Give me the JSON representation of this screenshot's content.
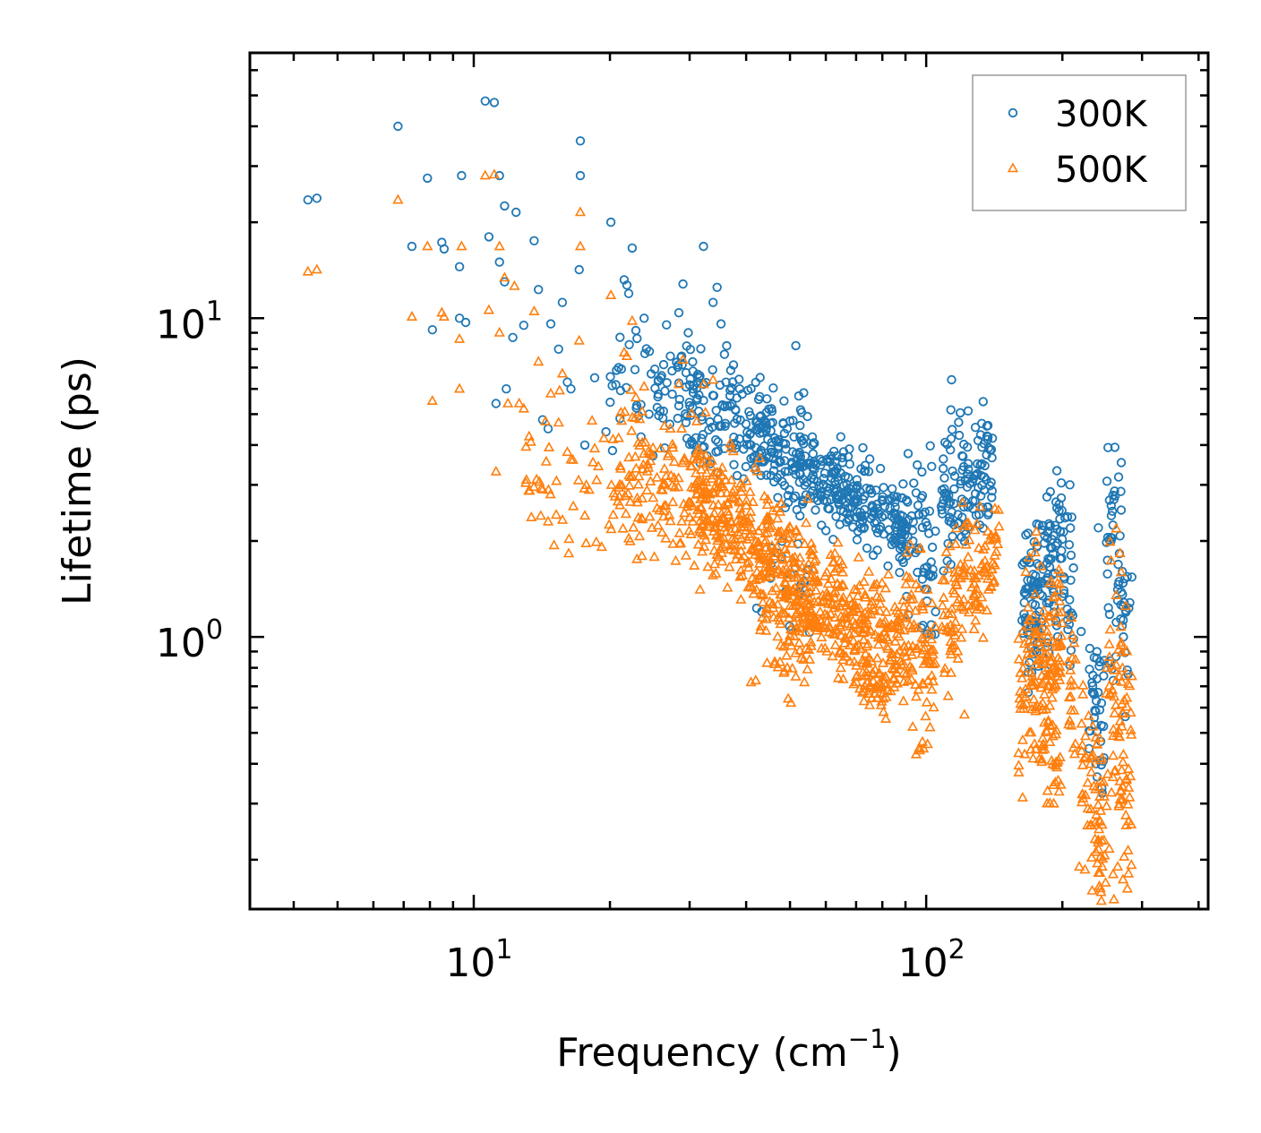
{
  "chart_data": {
    "type": "scatter",
    "title": "",
    "xlabel": "Frequency (cm",
    "xlabel_sup": "−1",
    "xlabel_end": ")",
    "ylabel": "Lifetime (ps)",
    "xscale": "log",
    "yscale": "log",
    "xlim": [
      3.2,
      420
    ],
    "ylim": [
      0.14,
      68
    ],
    "legend_position": "top-right",
    "x_ticks": [
      {
        "value": 10,
        "base": "10",
        "exp": "1"
      },
      {
        "value": 100,
        "base": "10",
        "exp": "2"
      }
    ],
    "y_ticks": [
      {
        "value": 1,
        "base": "10",
        "exp": "0"
      },
      {
        "value": 10,
        "base": "10",
        "exp": "1"
      }
    ],
    "series": [
      {
        "name": "300K",
        "color": "#1f77b4",
        "marker": "circle",
        "points": [
          [
            4.3,
            23.5
          ],
          [
            4.5,
            23.8
          ],
          [
            6.8,
            40
          ],
          [
            7.3,
            16.8
          ],
          [
            7.9,
            27.5
          ],
          [
            8.1,
            9.2
          ],
          [
            8.5,
            17.3
          ],
          [
            8.6,
            16.5
          ],
          [
            9.3,
            14.5
          ],
          [
            9.3,
            10.0
          ],
          [
            9.4,
            28.0
          ],
          [
            9.6,
            9.7
          ],
          [
            10.6,
            48
          ],
          [
            11.1,
            47.5
          ],
          [
            10.8,
            18.0
          ],
          [
            11.2,
            5.4
          ],
          [
            11.4,
            28.0
          ],
          [
            11.4,
            15.0
          ],
          [
            11.7,
            22.5
          ],
          [
            11.7,
            13.0
          ],
          [
            11.8,
            6.0
          ],
          [
            12.4,
            21.5
          ],
          [
            12.2,
            8.7
          ],
          [
            12.9,
            9.5
          ],
          [
            13.6,
            17.5
          ],
          [
            13.9,
            12.3
          ],
          [
            14.2,
            4.8
          ],
          [
            14.6,
            4.5
          ],
          [
            14.8,
            9.6
          ],
          [
            15.4,
            8.0
          ],
          [
            15.7,
            11.2
          ],
          [
            16.1,
            6.3
          ],
          [
            16.4,
            6.0
          ],
          [
            17.2,
            36
          ],
          [
            17.2,
            28
          ],
          [
            17.1,
            14.2
          ],
          [
            17.6,
            4.0
          ],
          [
            18.5,
            6.5
          ],
          [
            19.6,
            4.4
          ],
          [
            20.1,
            20.0
          ],
          [
            20.9,
            7.0
          ],
          [
            21.5,
            13.2
          ],
          [
            21.8,
            12.7
          ],
          [
            22.4,
            16.6
          ],
          [
            23.8,
            10.0
          ],
          [
            24.4,
            5.0
          ],
          [
            24.9,
            3.7
          ],
          [
            25.9,
            6.5
          ],
          [
            27.2,
            7.6
          ],
          [
            28.4,
            10.4
          ],
          [
            28.8,
            7.6
          ],
          [
            29.0,
            12.8
          ],
          [
            29.8,
            9.0
          ],
          [
            31.5,
            6.5
          ],
          [
            32.2,
            16.8
          ],
          [
            33.8,
            11.2
          ],
          [
            34.5,
            12.5
          ],
          [
            35.2,
            9.6
          ],
          [
            36.1,
            6.3
          ],
          [
            38.7,
            6.0
          ],
          [
            42.2,
            1.23
          ],
          [
            43.3,
            1.2
          ],
          [
            45.5,
            5.2
          ],
          [
            48.5,
            5.5
          ],
          [
            51.5,
            8.2
          ],
          [
            52.3,
            5.7
          ],
          [
            63.5,
            3.7
          ],
          [
            120.1,
            3.7
          ],
          [
            140.1,
            4.2
          ],
          [
            220.1,
            1.04
          ],
          [
            240.2,
            2.2
          ],
          [
            260.0,
            2.7
          ]
        ]
      },
      {
        "name": "500K",
        "color": "#ff7f0e",
        "marker": "triangle",
        "points": [
          [
            4.3,
            14.0
          ],
          [
            4.5,
            14.2
          ],
          [
            6.8,
            23.5
          ],
          [
            7.3,
            10.1
          ],
          [
            7.9,
            16.8
          ],
          [
            8.1,
            5.5
          ],
          [
            8.5,
            10.4
          ],
          [
            8.6,
            10.1
          ],
          [
            9.3,
            8.6
          ],
          [
            9.3,
            6.0
          ],
          [
            9.4,
            16.8
          ],
          [
            10.6,
            28
          ],
          [
            11.1,
            28.2
          ],
          [
            10.8,
            10.6
          ],
          [
            11.2,
            3.3
          ],
          [
            11.4,
            16.8
          ],
          [
            11.4,
            9.0
          ],
          [
            11.7,
            13.4
          ],
          [
            11.9,
            5.4
          ],
          [
            12.3,
            12.6
          ],
          [
            12.6,
            5.4
          ],
          [
            12.9,
            5.2
          ],
          [
            13.6,
            10.5
          ],
          [
            13.9,
            7.3
          ],
          [
            14.2,
            2.9
          ],
          [
            14.6,
            2.3
          ],
          [
            14.8,
            5.8
          ],
          [
            15.4,
            4.7
          ],
          [
            15.7,
            6.7
          ],
          [
            16.1,
            3.8
          ],
          [
            16.4,
            3.6
          ],
          [
            17.2,
            21.5
          ],
          [
            17.2,
            16.8
          ],
          [
            17.1,
            8.5
          ],
          [
            17.6,
            2.4
          ],
          [
            18.5,
            3.9
          ],
          [
            20.1,
            11.8
          ],
          [
            20.9,
            4.2
          ],
          [
            21.5,
            7.8
          ],
          [
            21.8,
            7.6
          ],
          [
            22.4,
            9.8
          ],
          [
            23.8,
            6.1
          ],
          [
            25.9,
            3.9
          ],
          [
            27.2,
            4.5
          ],
          [
            28.4,
            6.2
          ],
          [
            28.8,
            4.5
          ],
          [
            29.0,
            7.4
          ],
          [
            32.2,
            6.2
          ],
          [
            33.8,
            6.4
          ],
          [
            41.0,
            0.72
          ],
          [
            42.0,
            0.73
          ],
          [
            48.6,
            0.78
          ],
          [
            51.5,
            0.75
          ],
          [
            53.8,
            0.72
          ],
          [
            75.0,
            0.61
          ],
          [
            79.5,
            0.61
          ],
          [
            102.0,
            0.52
          ],
          [
            121.5,
            0.57
          ],
          [
            144.5,
            2.5
          ],
          [
            164.0,
            0.61
          ],
          [
            185.0,
            0.3
          ],
          [
            218.0,
            0.19
          ],
          [
            245.0,
            0.19
          ],
          [
            259.0,
            0.18
          ],
          [
            265.0,
            0.19
          ],
          [
            260.0,
            0.15
          ]
        ]
      }
    ]
  }
}
